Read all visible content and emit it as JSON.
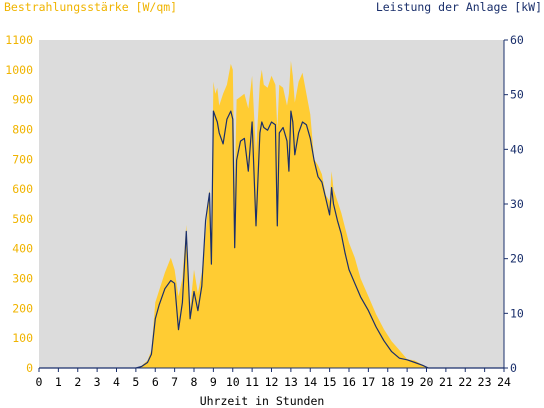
{
  "chart_data": {
    "type": "area",
    "left_axis_label": "Bestrahlungsstärke [W/qm]",
    "right_axis_label": "Leistung der Anlage [kW]",
    "xlabel": "Uhrzeit in Stunden",
    "x_range": [
      0,
      24
    ],
    "x_ticks": [
      "0",
      "1",
      "2",
      "3",
      "4",
      "5",
      "6",
      "7",
      "8",
      "9",
      "10",
      "11",
      "12",
      "13",
      "14",
      "15",
      "16",
      "17",
      "18",
      "19",
      "20",
      "21",
      "22",
      "23",
      "24"
    ],
    "left_range": [
      0,
      1100
    ],
    "left_ticks": [
      "0",
      "100",
      "200",
      "300",
      "400",
      "500",
      "600",
      "700",
      "800",
      "900",
      "1000",
      "1100"
    ],
    "right_range": [
      0,
      60
    ],
    "right_ticks": [
      "0",
      "10",
      "20",
      "30",
      "40",
      "50",
      "60"
    ],
    "grid": false,
    "colors": {
      "background": "#dcdcdc",
      "irradiance_fill": "#ffcc33",
      "power_line": "#1a2f6b",
      "left_axis": "#f0b400",
      "right_axis": "#1a2f6b"
    },
    "series": [
      {
        "name": "Bestrahlungsstärke",
        "axis": "left",
        "x": [
          0,
          5.0,
          5.3,
          5.6,
          5.8,
          6.0,
          6.2,
          6.5,
          6.8,
          7.0,
          7.2,
          7.4,
          7.6,
          7.8,
          8.0,
          8.2,
          8.4,
          8.6,
          8.8,
          8.9,
          9.0,
          9.1,
          9.2,
          9.3,
          9.5,
          9.7,
          9.9,
          10.0,
          10.1,
          10.2,
          10.4,
          10.6,
          10.8,
          11.0,
          11.2,
          11.4,
          11.5,
          11.6,
          11.8,
          12.0,
          12.2,
          12.3,
          12.4,
          12.6,
          12.8,
          12.9,
          13.0,
          13.1,
          13.2,
          13.4,
          13.6,
          13.8,
          14.0,
          14.2,
          14.4,
          14.6,
          14.8,
          15.0,
          15.1,
          15.2,
          15.4,
          15.6,
          15.8,
          16.0,
          16.3,
          16.6,
          17.0,
          17.4,
          17.8,
          18.2,
          18.6,
          19.0,
          19.4,
          19.8,
          20.1,
          20.3,
          24
        ],
        "values": [
          0,
          0,
          8,
          25,
          60,
          220,
          260,
          320,
          370,
          330,
          240,
          300,
          480,
          200,
          330,
          250,
          320,
          450,
          600,
          450,
          960,
          920,
          940,
          880,
          920,
          950,
          1020,
          1000,
          600,
          900,
          910,
          920,
          870,
          980,
          720,
          960,
          1000,
          950,
          940,
          980,
          950,
          800,
          950,
          940,
          880,
          920,
          1030,
          980,
          890,
          960,
          990,
          920,
          850,
          700,
          680,
          650,
          580,
          560,
          660,
          600,
          560,
          520,
          470,
          420,
          370,
          300,
          240,
          180,
          130,
          90,
          60,
          30,
          25,
          10,
          2,
          0,
          0
        ]
      },
      {
        "name": "Leistung der Anlage",
        "axis": "right",
        "x": [
          0,
          5.0,
          5.3,
          5.6,
          5.8,
          6.0,
          6.2,
          6.5,
          6.8,
          7.0,
          7.2,
          7.4,
          7.6,
          7.8,
          8.0,
          8.2,
          8.4,
          8.6,
          8.8,
          8.9,
          9.0,
          9.1,
          9.2,
          9.3,
          9.5,
          9.7,
          9.9,
          10.0,
          10.1,
          10.2,
          10.4,
          10.6,
          10.8,
          11.0,
          11.2,
          11.4,
          11.5,
          11.6,
          11.8,
          12.0,
          12.2,
          12.3,
          12.4,
          12.6,
          12.8,
          12.9,
          13.0,
          13.1,
          13.2,
          13.4,
          13.6,
          13.8,
          14.0,
          14.2,
          14.4,
          14.6,
          14.8,
          15.0,
          15.1,
          15.2,
          15.4,
          15.6,
          15.8,
          16.0,
          16.3,
          16.6,
          17.0,
          17.4,
          17.8,
          18.2,
          18.6,
          19.0,
          19.4,
          19.8,
          20.1,
          20.3,
          24
        ],
        "values": [
          0,
          0,
          0.3,
          1.0,
          2.5,
          9.0,
          11.5,
          14.5,
          16.0,
          15.5,
          7.0,
          12.0,
          25.0,
          9.0,
          14.0,
          10.5,
          15.0,
          27.0,
          32.0,
          19.0,
          47.0,
          46.0,
          45.0,
          43.0,
          41.0,
          45.5,
          47.0,
          45.5,
          22.0,
          38.0,
          41.5,
          42.0,
          36.0,
          45.0,
          26.0,
          43.0,
          45.0,
          44.0,
          43.5,
          45.0,
          44.5,
          26.0,
          43.0,
          44.0,
          41.5,
          36.0,
          47.0,
          45.0,
          39.0,
          43.0,
          45.0,
          44.5,
          42.0,
          38.0,
          35.0,
          34.0,
          31.0,
          28.0,
          33.0,
          30.0,
          27.0,
          24.5,
          21.0,
          18.0,
          15.5,
          13.0,
          10.5,
          7.5,
          5.0,
          3.0,
          1.8,
          1.5,
          1.0,
          0.5,
          0,
          0,
          0
        ]
      }
    ]
  }
}
